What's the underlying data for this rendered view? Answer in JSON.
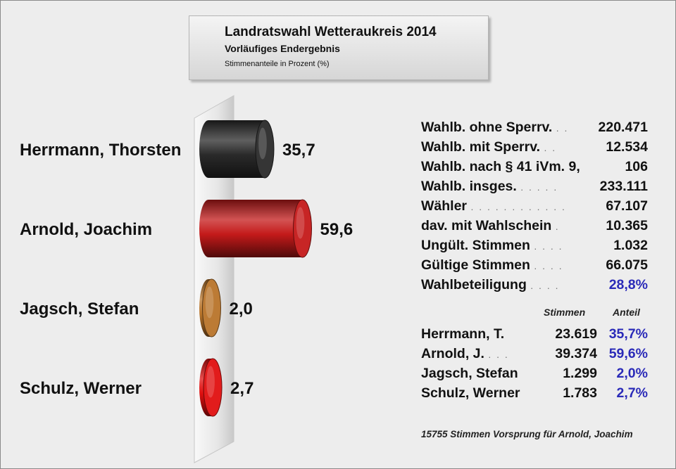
{
  "title": "Landratswahl Wetteraukreis 2014",
  "subtitle": "Vorläufiges Endergebnis",
  "unit_note": "Stimmenanteile in Prozent (%)",
  "chart_data": {
    "type": "bar",
    "orientation": "horizontal",
    "style": "3d-cylinder",
    "title": "Landratswahl Wetteraukreis 2014",
    "subtitle": "Vorläufiges Endergebnis",
    "xlabel": "",
    "ylabel": "",
    "categories": [
      "Herrmann, Thorsten",
      "Arnold, Joachim",
      "Jagsch, Stefan",
      "Schulz, Werner"
    ],
    "value_labels": [
      "35,7",
      "59,6",
      "2,0",
      "2,7"
    ],
    "values": [
      35.7,
      59.6,
      2.0,
      2.7
    ],
    "colors": [
      "#2a2a2a",
      "#c41a1a",
      "#b8742a",
      "#e01010"
    ],
    "xlim": [
      0,
      100
    ],
    "grid": false,
    "legend": "none"
  },
  "stats": [
    {
      "label": "Wahlb. ohne Sperrv.",
      "dots": ". .",
      "value": "220.471"
    },
    {
      "label": "Wahlb. mit Sperrv.",
      "dots": ". .",
      "value": "12.534"
    },
    {
      "label": "Wahlb. nach § 41 iVm. 9,",
      "dots": "",
      "value": "106"
    },
    {
      "label": "Wahlb. insges.",
      "dots": ". . . . .",
      "value": "233.111"
    },
    {
      "label": "Wähler",
      "dots": ". . . . . . . . . . . .",
      "value": "67.107"
    },
    {
      "label": "dav. mit Wahlschein",
      "dots": ".",
      "value": "10.365"
    },
    {
      "label": "Ungült. Stimmen",
      "dots": ". . . .",
      "value": "1.032"
    },
    {
      "label": "Gültige Stimmen",
      "dots": ". . . .",
      "value": "66.075"
    },
    {
      "label": "Wahlbeteiligung",
      "dots": ". . . .",
      "value": "28,8%"
    }
  ],
  "results_header": {
    "votes": "Stimmen",
    "share": "Anteil"
  },
  "results": [
    {
      "name": "Herrmann, T.",
      "dots": "",
      "votes": "23.619",
      "share": "35,7%"
    },
    {
      "name": "Arnold, J.",
      "dots": ". . .",
      "votes": "39.374",
      "share": "59,6%"
    },
    {
      "name": "Jagsch, Stefan",
      "dots": "",
      "votes": "1.299",
      "share": "2,0%"
    },
    {
      "name": "Schulz, Werner",
      "dots": "",
      "votes": "1.783",
      "share": "2,7%"
    }
  ],
  "footer": "15755 Stimmen Vorsprung für Arnold, Joachim"
}
